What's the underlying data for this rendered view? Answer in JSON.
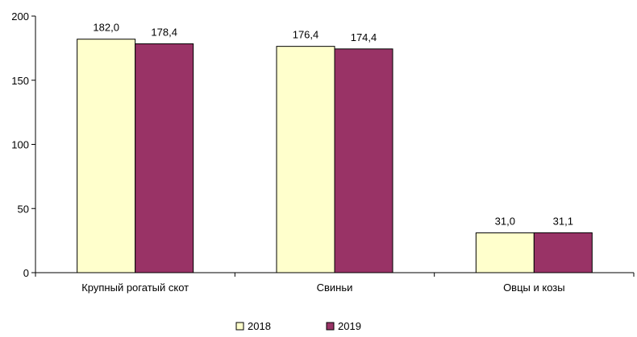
{
  "chart_data": {
    "type": "bar",
    "categories": [
      "Крупный рогатый скот",
      "Свиньи",
      "Овцы и козы"
    ],
    "series": [
      {
        "name": "2018",
        "values": [
          182.0,
          176.4,
          31.0
        ],
        "labels": [
          "182,0",
          "176,4",
          "31,0"
        ],
        "color": "#FFFFCC"
      },
      {
        "name": "2019",
        "values": [
          178.4,
          174.4,
          31.1
        ],
        "labels": [
          "178,4",
          "174,4",
          "31,1"
        ],
        "color": "#993366"
      }
    ],
    "ylim": [
      0,
      200
    ],
    "yticks": [
      0,
      50,
      100,
      150,
      200
    ],
    "ytick_labels": [
      "0",
      "50",
      "100",
      "150",
      "200"
    ],
    "grid": false,
    "legend": "bottom",
    "title": "",
    "xlabel": "",
    "ylabel": ""
  }
}
